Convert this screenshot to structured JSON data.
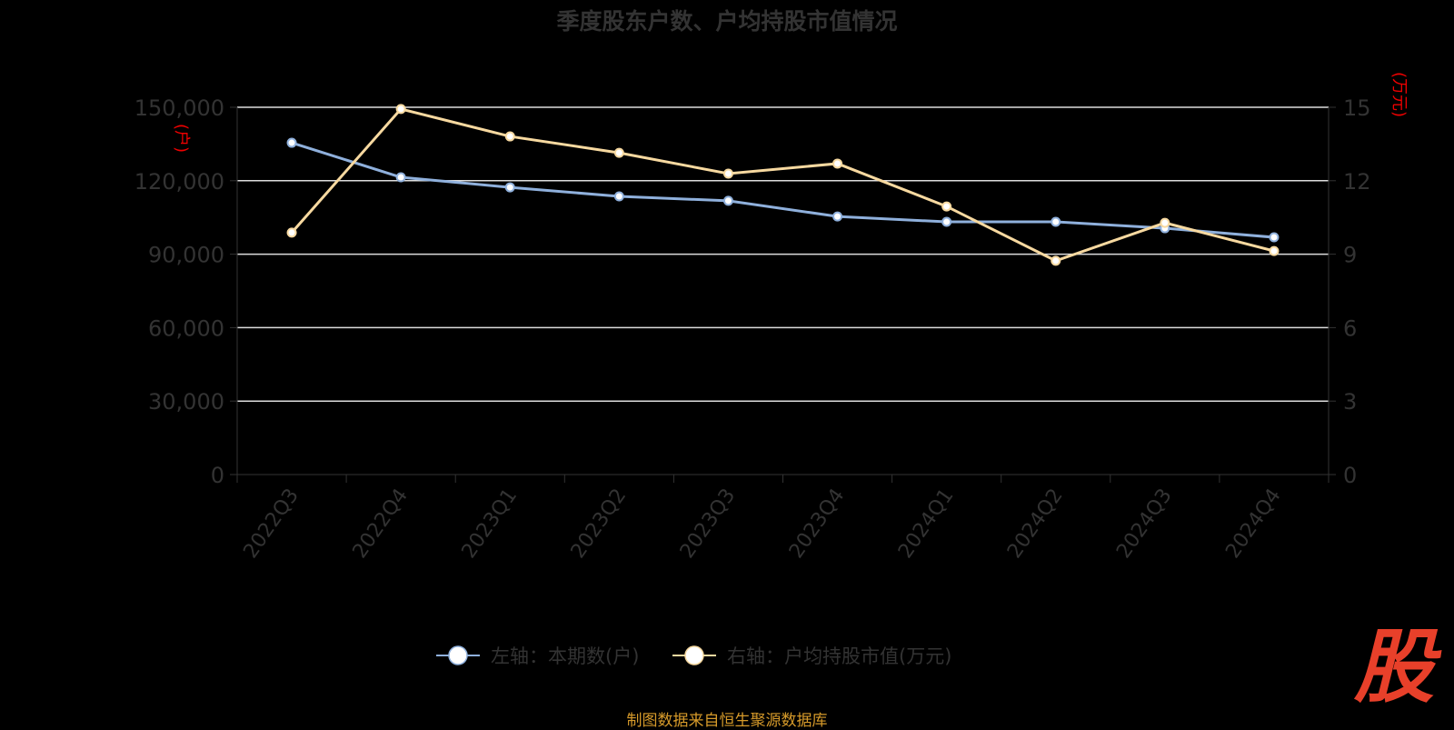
{
  "chart_data": {
    "type": "line",
    "title": "季度股东户数、户均持股市值情况",
    "categories": [
      "2022Q3",
      "2022Q4",
      "2023Q1",
      "2023Q2",
      "2023Q3",
      "2023Q4",
      "2024Q1",
      "2024Q2",
      "2024Q3",
      "2024Q4"
    ],
    "y_left": {
      "name": "(户)",
      "min": 0,
      "max": 150000,
      "ticks": [
        "0",
        "30,000",
        "60,000",
        "90,000",
        "120,000",
        "150,000"
      ]
    },
    "y_right": {
      "name": "(万元)",
      "min": 0,
      "max": 15,
      "ticks": [
        "0",
        "3",
        "6",
        "9",
        "12",
        "15"
      ]
    },
    "series": [
      {
        "name": "左轴：本期数(户)",
        "axis": "left",
        "color": "#8fb0dc",
        "values": [
          135500,
          121400,
          117300,
          113600,
          111800,
          105400,
          103200,
          103200,
          100600,
          96900
        ]
      },
      {
        "name": "右轴：户均持股市值(万元)",
        "axis": "right",
        "color": "#f7d9a0",
        "values": [
          9.88,
          14.93,
          13.81,
          13.14,
          12.29,
          12.7,
          10.95,
          8.73,
          10.28,
          9.13
        ]
      }
    ],
    "grid": true,
    "legend_position": "bottom"
  },
  "footer": "制图数据来自恒生聚源数据库",
  "logo": "股"
}
